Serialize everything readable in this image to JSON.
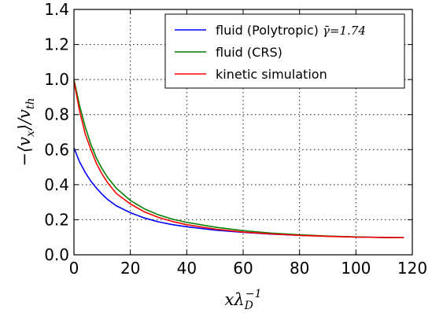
{
  "chart_data": {
    "type": "line",
    "xlabel": "xλ_D^{-1}",
    "ylabel": "-⟨v_x⟩/v_th",
    "xlim": [
      0,
      120
    ],
    "ylim": [
      0,
      1.4
    ],
    "xticks": [
      "0",
      "20",
      "40",
      "60",
      "80",
      "100",
      "120"
    ],
    "yticks": [
      "0.0",
      "0.2",
      "0.4",
      "0.6",
      "0.8",
      "1.0",
      "1.2",
      "1.4"
    ],
    "grid": true,
    "legend_position": "top-right",
    "series": [
      {
        "name": "fluid (Polytropic) γ̄=1.74",
        "color": "#0000ff",
        "x": [
          0,
          2,
          4,
          6,
          8,
          10,
          12,
          15,
          20,
          25,
          30,
          35,
          40,
          50,
          60,
          70,
          80,
          90,
          100,
          110,
          117
        ],
        "y": [
          0.61,
          0.53,
          0.47,
          0.42,
          0.38,
          0.345,
          0.315,
          0.28,
          0.24,
          0.21,
          0.188,
          0.172,
          0.16,
          0.141,
          0.128,
          0.118,
          0.111,
          0.106,
          0.102,
          0.099,
          0.098
        ]
      },
      {
        "name": "fluid (CRS)",
        "color": "#008000",
        "x": [
          0,
          2,
          4,
          6,
          8,
          10,
          12,
          15,
          20,
          25,
          30,
          35,
          40,
          50,
          60,
          70,
          80,
          90,
          100,
          110,
          117
        ],
        "y": [
          1.0,
          0.85,
          0.73,
          0.63,
          0.55,
          0.49,
          0.44,
          0.38,
          0.31,
          0.262,
          0.228,
          0.203,
          0.185,
          0.158,
          0.138,
          0.124,
          0.114,
          0.107,
          0.102,
          0.099,
          0.098
        ]
      },
      {
        "name": "kinetic simulation",
        "color": "#ff0000",
        "x": [
          0,
          2,
          4,
          6,
          8,
          10,
          12,
          15,
          20,
          25,
          30,
          35,
          40,
          50,
          60,
          70,
          80,
          90,
          100,
          110,
          117
        ],
        "y": [
          0.99,
          0.82,
          0.69,
          0.6,
          0.52,
          0.46,
          0.41,
          0.35,
          0.29,
          0.245,
          0.213,
          0.19,
          0.172,
          0.147,
          0.13,
          0.119,
          0.111,
          0.105,
          0.101,
          0.099,
          0.098
        ]
      }
    ]
  },
  "legend": {
    "polytropic_text": "fluid (Polytropic) ",
    "polytropic_math": "γ̄=1.74",
    "crs": "fluid (CRS)",
    "kinetic": "kinetic simulation"
  }
}
